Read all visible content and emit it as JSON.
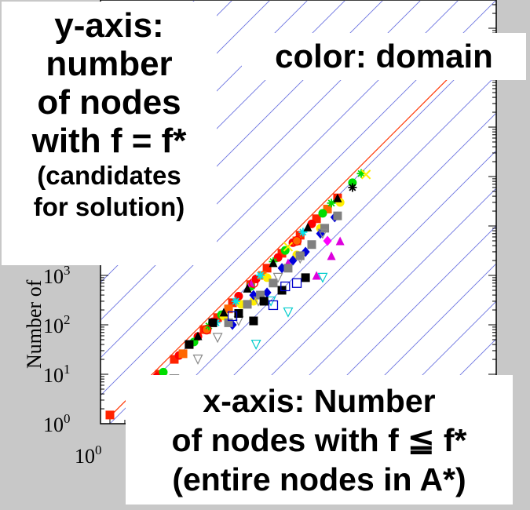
{
  "chart_data": {
    "type": "scatter",
    "ylabel": "Number of",
    "log_scale": true,
    "y_tick_labels": [
      {
        "base": "10",
        "exp": "0",
        "value": 1
      },
      {
        "base": "10",
        "exp": "1",
        "value": 10
      },
      {
        "base": "10",
        "exp": "2",
        "value": 100
      },
      {
        "base": "10",
        "exp": "3",
        "value": 1000
      }
    ],
    "x_tick_labels": [
      {
        "base": "10",
        "exp": "0",
        "value": 1
      }
    ],
    "series": [
      {
        "color": "#ff2200",
        "marker": "square",
        "points": [
          [
            1,
            1.5
          ],
          [
            3,
            3
          ],
          [
            6,
            6
          ],
          [
            10,
            10
          ],
          [
            20,
            20
          ],
          [
            40,
            40
          ],
          [
            80,
            80
          ],
          [
            150,
            140
          ],
          [
            300,
            280
          ],
          [
            700,
            650
          ],
          [
            1500,
            1400
          ],
          [
            3000,
            2800
          ],
          [
            7000,
            6500
          ],
          [
            15000,
            14000
          ],
          [
            40000,
            37000
          ]
        ]
      },
      {
        "color": "#ff0000",
        "marker": "circle",
        "points": [
          [
            4,
            4
          ],
          [
            9,
            9
          ],
          [
            25,
            24
          ],
          [
            60,
            58
          ],
          [
            120,
            115
          ],
          [
            400,
            380
          ],
          [
            900,
            850
          ],
          [
            2500,
            2300
          ],
          [
            5000,
            4600
          ],
          [
            12000,
            11000
          ]
        ]
      },
      {
        "color": "#ff6600",
        "marker": "square",
        "points": [
          [
            8,
            7
          ],
          [
            30,
            26
          ],
          [
            90,
            80
          ],
          [
            250,
            210
          ],
          [
            1200,
            1000
          ],
          [
            6000,
            5000
          ],
          [
            25000,
            22000
          ]
        ]
      },
      {
        "color": "#00dd00",
        "marker": "circle",
        "points": [
          [
            12,
            11
          ],
          [
            50,
            45
          ],
          [
            180,
            160
          ],
          [
            700,
            600
          ],
          [
            3500,
            3200
          ],
          [
            20000,
            18000
          ],
          [
            80000,
            75000
          ]
        ]
      },
      {
        "color": "#00dd00",
        "marker": "asterisk",
        "points": [
          [
            100,
            95
          ],
          [
            2000,
            1900
          ],
          [
            30000,
            29000
          ],
          [
            120000,
            115000
          ]
        ]
      },
      {
        "color": "#ffee00",
        "marker": "circle",
        "points": [
          [
            200,
            150
          ],
          [
            450,
            260
          ],
          [
            800,
            300
          ],
          [
            1500,
            900
          ],
          [
            6000,
            2600
          ],
          [
            18000,
            9000
          ],
          [
            45000,
            30000
          ]
        ]
      },
      {
        "color": "#00e5ee",
        "marker": "asterisk",
        "points": [
          [
            140,
            110
          ],
          [
            350,
            300
          ],
          [
            1100,
            1000
          ],
          [
            8000,
            7500
          ]
        ]
      },
      {
        "color": "#00cccc",
        "marker": "triangle-down",
        "points": [
          [
            900,
            40
          ],
          [
            1800,
            300
          ],
          [
            4000,
            180
          ],
          [
            20000,
            900
          ]
        ]
      },
      {
        "color": "#0000dd",
        "marker": "diamond",
        "points": [
          [
            300,
            100
          ],
          [
            800,
            400
          ],
          [
            1500,
            450
          ],
          [
            3000,
            1400
          ],
          [
            5000,
            2000
          ],
          [
            9000,
            3000
          ],
          [
            18000,
            7000
          ],
          [
            35000,
            15000
          ]
        ]
      },
      {
        "color": "#dd00dd",
        "marker": "triangle",
        "points": [
          [
            700,
            700
          ],
          [
            4000,
            1800
          ],
          [
            15000,
            1000
          ],
          [
            30000,
            2500
          ],
          [
            45000,
            5000
          ]
        ]
      },
      {
        "color": "#ff00ff",
        "marker": "diamond",
        "points": [
          [
            25000,
            5000
          ]
        ]
      },
      {
        "color": "#808080",
        "marker": "square",
        "points": [
          [
            250,
            110
          ],
          [
            600,
            260
          ],
          [
            1100,
            400
          ],
          [
            2000,
            700
          ],
          [
            4000,
            1400
          ],
          [
            7000,
            2500
          ],
          [
            12000,
            4200
          ],
          [
            22000,
            9000
          ],
          [
            40000,
            16000
          ]
        ]
      },
      {
        "color": "#888888",
        "marker": "triangle-down",
        "points": [
          [
            20,
            8
          ],
          [
            60,
            20
          ],
          [
            150,
            55
          ],
          [
            400,
            120
          ],
          [
            1000,
            300
          ],
          [
            2500,
            900
          ],
          [
            7000,
            2200
          ],
          [
            20000,
            7000
          ]
        ]
      },
      {
        "color": "#000000",
        "marker": "square",
        "points": [
          [
            40,
            40
          ],
          [
            120,
            110
          ],
          [
            400,
            170
          ],
          [
            800,
            120
          ],
          [
            1300,
            300
          ],
          [
            3000,
            500
          ],
          [
            9000,
            900
          ]
        ]
      },
      {
        "color": "#000000",
        "marker": "triangle",
        "points": [
          [
            60,
            60
          ],
          [
            200,
            180
          ],
          [
            600,
            550
          ],
          [
            2000,
            1800
          ],
          [
            10000,
            9500
          ],
          [
            40000,
            37000
          ]
        ]
      },
      {
        "color": "#0000cc",
        "marker": "square-open",
        "points": [
          [
            300,
            150
          ],
          [
            2000,
            250
          ],
          [
            3500,
            600
          ],
          [
            6000,
            700
          ]
        ]
      },
      {
        "color": "#ff0000",
        "marker": "circle-open",
        "points": [
          [
            90,
            80
          ],
          [
            800,
            700
          ],
          [
            6000,
            5000
          ]
        ]
      },
      {
        "color": "#000000",
        "marker": "asterisk",
        "points": [
          [
            80000,
            60000
          ]
        ]
      },
      {
        "color": "#ffee00",
        "marker": "x",
        "points": [
          [
            150000,
            110000
          ],
          [
            4000,
            3800
          ]
        ]
      }
    ],
    "reference_line": "y = x"
  },
  "annotations": {
    "y_axis_note": [
      "y-axis:",
      "number",
      "of nodes",
      "with f = f*",
      "(candidates",
      "for solution)"
    ],
    "color_note": "color: domain",
    "x_axis_note": [
      "x-axis: Number",
      "of nodes with f ≦ f*",
      "(entire nodes in A*)"
    ]
  },
  "colors": {
    "background": "#c8c8c8",
    "reference_line": "#ff3300",
    "contour_lines": "#6a72e0"
  }
}
